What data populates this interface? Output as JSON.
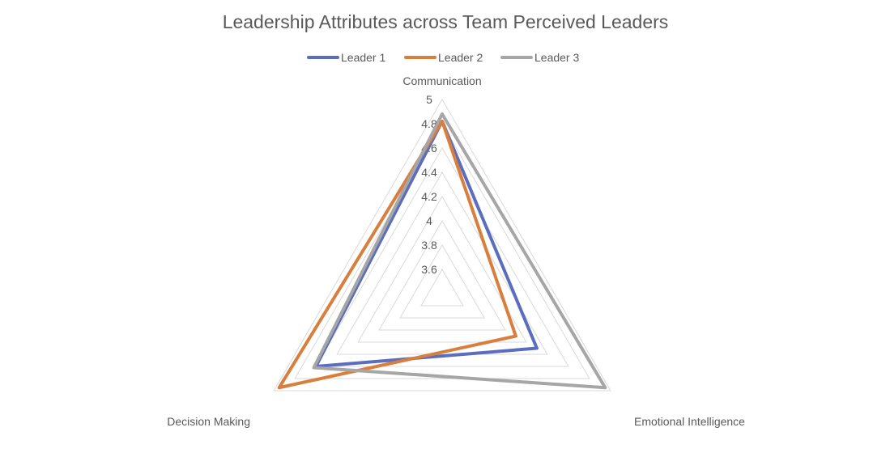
{
  "chart_data": {
    "type": "radar",
    "title": "Leadership Attributes across Team Perceived Leaders",
    "axes": [
      "Communication",
      "Emotional Intelligence",
      "Decision Making"
    ],
    "rlim": [
      3.4,
      5
    ],
    "ticks": [
      "3.6",
      "3.8",
      "4",
      "4.2",
      "4.4",
      "4.6",
      "4.8",
      "5"
    ],
    "tick_values": [
      3.6,
      3.8,
      4.0,
      4.2,
      4.4,
      4.6,
      4.8,
      5.0
    ],
    "grid": true,
    "legend_position": "top",
    "series": [
      {
        "name": "Leader 1",
        "color": "#5B6DBF",
        "values": [
          4.82,
          4.3,
          4.6
        ]
      },
      {
        "name": "Leader 2",
        "color": "#D97F3D",
        "values": [
          4.82,
          4.1,
          4.95
        ]
      },
      {
        "name": "Leader 3",
        "color": "#A6A6A6",
        "values": [
          4.88,
          4.95,
          4.62
        ]
      }
    ]
  }
}
